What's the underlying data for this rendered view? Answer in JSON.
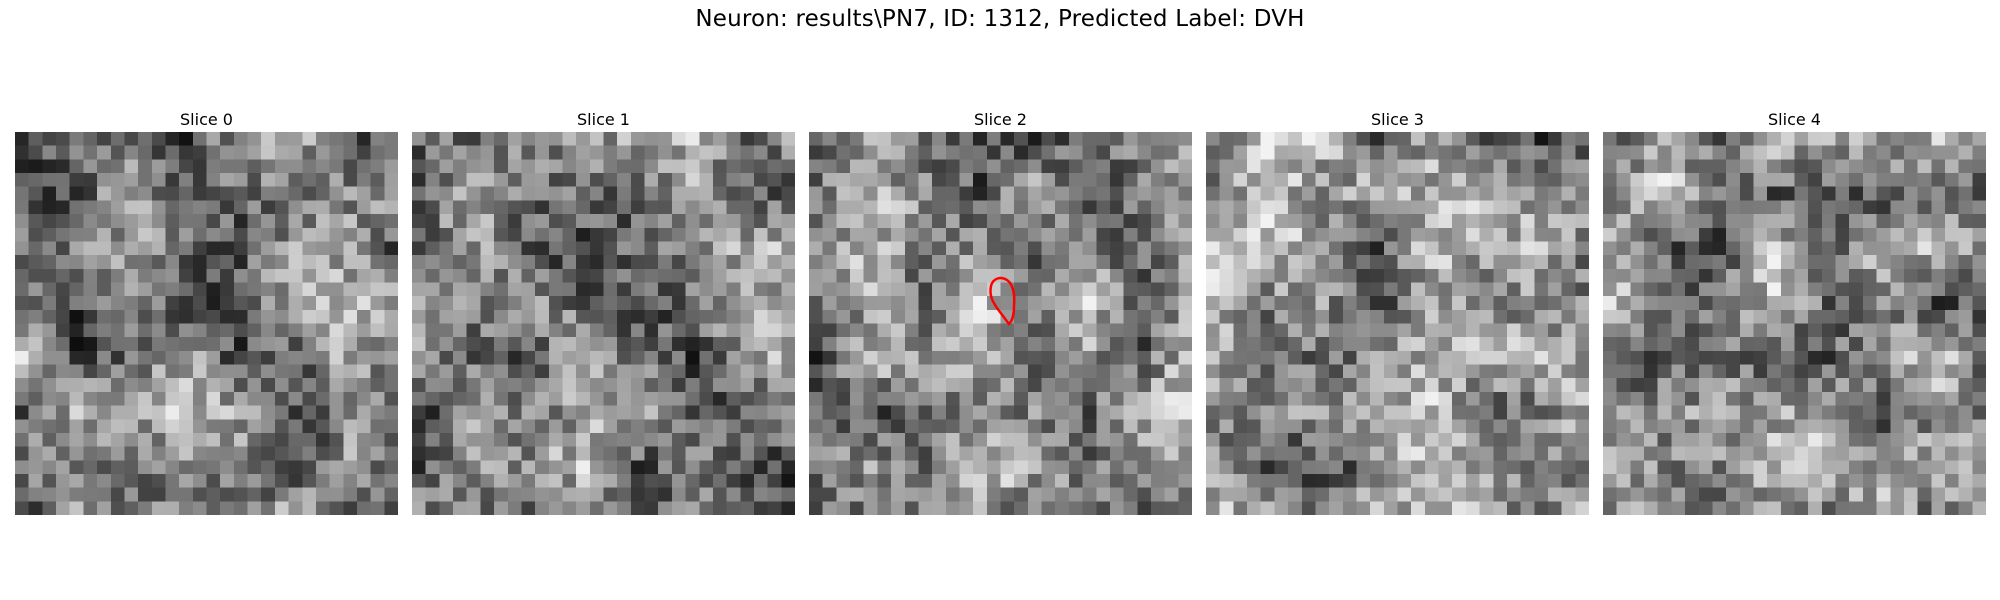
{
  "figure": {
    "title": "Neuron: results\\PN7, ID: 1312, Predicted Label: DVH"
  },
  "panels": [
    {
      "title": "Slice 0",
      "seed": 11,
      "mean": 0.5,
      "highlight": false
    },
    {
      "title": "Slice 1",
      "seed": 23,
      "mean": 0.52,
      "highlight": false
    },
    {
      "title": "Slice 2",
      "seed": 37,
      "mean": 0.55,
      "highlight": true
    },
    {
      "title": "Slice 3",
      "seed": 41,
      "mean": 0.55,
      "highlight": false
    },
    {
      "title": "Slice 4",
      "seed": 59,
      "mean": 0.54,
      "highlight": false
    }
  ],
  "grid_size": 28,
  "colormap": "gray",
  "outline_color": "#ff0000"
}
